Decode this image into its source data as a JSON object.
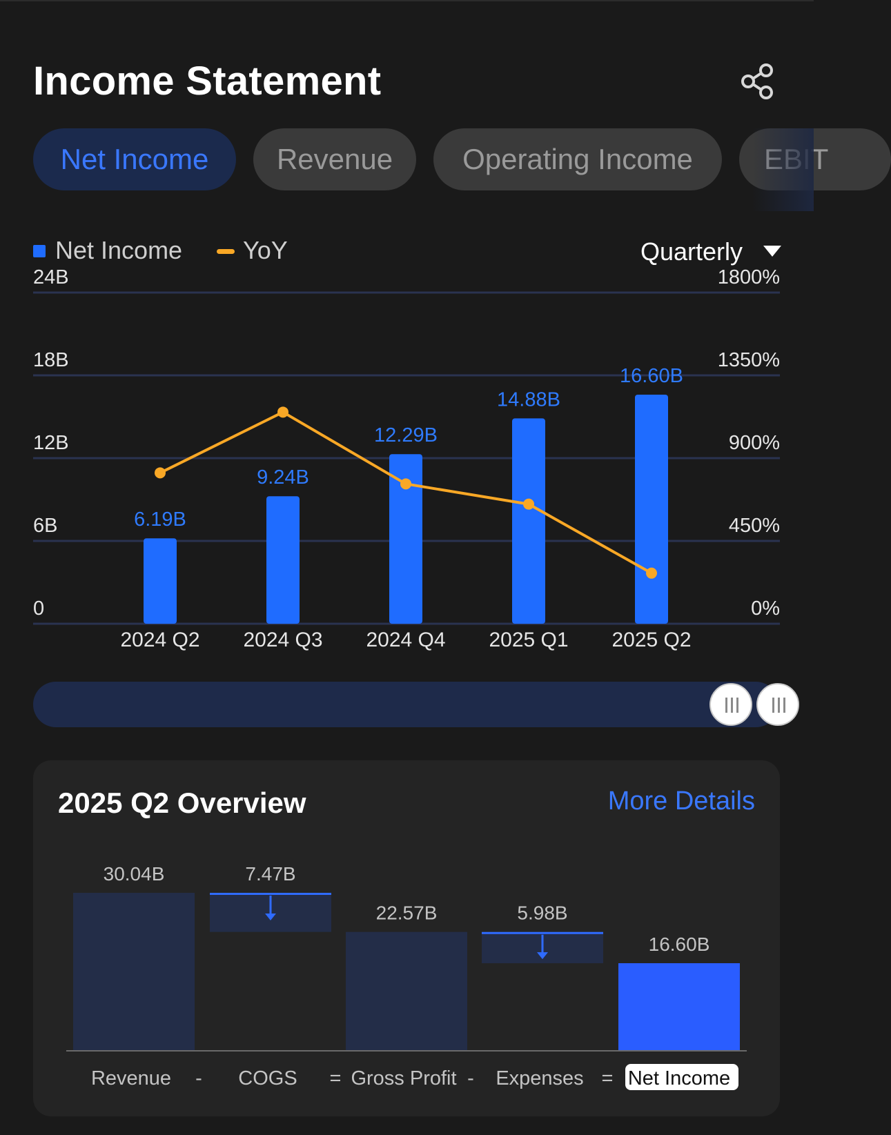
{
  "header": {
    "title": "Income Statement"
  },
  "tabs": [
    {
      "label": "Net Income",
      "active": true
    },
    {
      "label": "Revenue",
      "active": false
    },
    {
      "label": "Operating Income",
      "active": false
    },
    {
      "label": "EBIT",
      "active": false
    }
  ],
  "legend": {
    "series1": "Net Income",
    "series2": "YoY"
  },
  "period_selector": {
    "value": "Quarterly"
  },
  "colors": {
    "bar": "#1f6cff",
    "line": "#f9a826",
    "label": "#2f7bff",
    "grid": "#2a3350"
  },
  "chart_data": {
    "type": "bar",
    "categories": [
      "2024 Q2",
      "2024 Q3",
      "2024 Q4",
      "2025 Q1",
      "2025 Q2"
    ],
    "series": [
      {
        "name": "Net Income",
        "type": "bar",
        "axis": "left",
        "values": [
          6.19,
          9.24,
          12.29,
          14.88,
          16.6
        ],
        "labels": [
          "6.19B",
          "9.24B",
          "12.29B",
          "14.88B",
          "16.60B"
        ]
      },
      {
        "name": "YoY",
        "type": "line",
        "axis": "right",
        "values": [
          820,
          1150,
          760,
          650,
          275
        ]
      }
    ],
    "y_left": {
      "ticks": [
        0,
        6,
        12,
        18,
        24
      ],
      "tick_labels": [
        "0",
        "6B",
        "12B",
        "18B",
        "24B"
      ],
      "ylim": [
        0,
        24
      ]
    },
    "y_right": {
      "ticks": [
        0,
        450,
        900,
        1350,
        1800
      ],
      "tick_labels": [
        "0%",
        "450%",
        "900%",
        "1350%",
        "1800%"
      ],
      "ylim": [
        0,
        1800
      ]
    },
    "grid": true
  },
  "overview": {
    "title": "2025 Q2 Overview",
    "more_label": "More Details",
    "waterfall": {
      "type": "waterfall",
      "items": [
        {
          "label": "Revenue",
          "value": 30.04,
          "value_label": "30.04B",
          "kind": "total",
          "op": "-"
        },
        {
          "label": "COGS",
          "value": 7.47,
          "value_label": "7.47B",
          "kind": "decrease",
          "op": "="
        },
        {
          "label": "Gross Profit",
          "value": 22.57,
          "value_label": "22.57B",
          "kind": "total",
          "op": "-"
        },
        {
          "label": "Expenses",
          "value": 5.98,
          "value_label": "5.98B",
          "kind": "decrease",
          "op": "="
        },
        {
          "label": "Net Income",
          "value": 16.6,
          "value_label": "16.60B",
          "kind": "result",
          "op": ""
        }
      ]
    }
  }
}
